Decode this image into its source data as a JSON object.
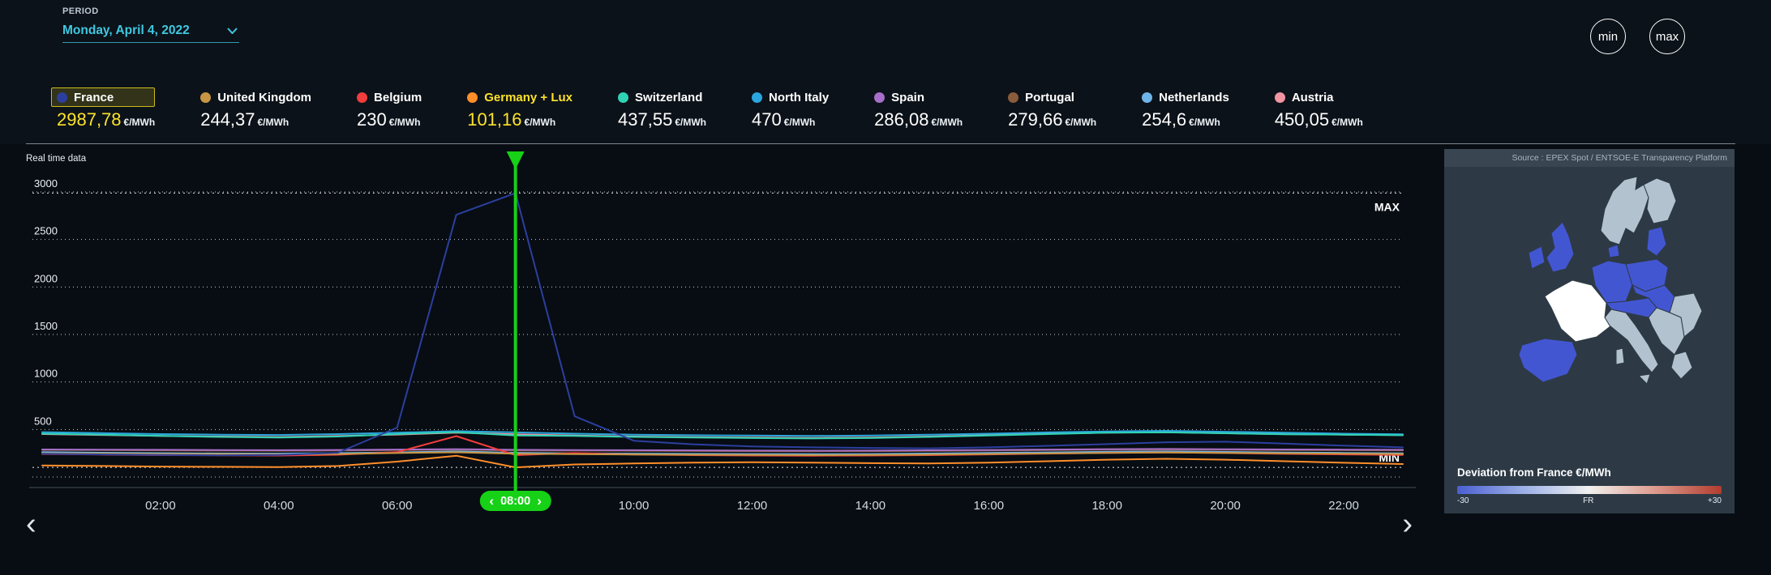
{
  "header": {
    "period_label": "PERIOD",
    "period_value": "Monday, April 4, 2022",
    "min_button": "min",
    "max_button": "max"
  },
  "legend": {
    "unit": "€/MWh",
    "items": [
      {
        "name": "France",
        "value": "2987,78",
        "color": "#2c3f9e",
        "highlight": true,
        "value_color": "#fce32a"
      },
      {
        "name": "United Kingdom",
        "value": "244,37",
        "color": "#c79544"
      },
      {
        "name": "Belgium",
        "value": "230",
        "color": "#f03d3d"
      },
      {
        "name": "Germany + Lux",
        "value": "101,16",
        "color": "#ff8e2a",
        "name_color": "#fce32a",
        "value_color": "#fce32a"
      },
      {
        "name": "Switzerland",
        "value": "437,55",
        "color": "#2fd3b3"
      },
      {
        "name": "North Italy",
        "value": "470",
        "color": "#2ba6de"
      },
      {
        "name": "Spain",
        "value": "286,08",
        "color": "#a76fc9"
      },
      {
        "name": "Portugal",
        "value": "279,66",
        "color": "#8a5c3c"
      },
      {
        "name": "Netherlands",
        "value": "254,6",
        "color": "#6fb4e8"
      },
      {
        "name": "Austria",
        "value": "450,05",
        "color": "#f294a2"
      }
    ]
  },
  "chart": {
    "realtime_label": "Real time data",
    "max_label": "MAX",
    "min_label": "MIN",
    "cursor_time": "08:00",
    "accent_green": "#16d116"
  },
  "chart_data": {
    "type": "line",
    "x_unit": "hour",
    "x": [
      0,
      1,
      2,
      3,
      4,
      5,
      6,
      7,
      8,
      9,
      10,
      11,
      12,
      13,
      14,
      15,
      16,
      17,
      18,
      19,
      20,
      21,
      22,
      23
    ],
    "ylim": [
      0,
      3000
    ],
    "yticks": [
      500,
      1000,
      1500,
      2000,
      2500,
      3000
    ],
    "xticks": [
      {
        "h": 2,
        "label": "02:00"
      },
      {
        "h": 4,
        "label": "04:00"
      },
      {
        "h": 6,
        "label": "06:00"
      },
      {
        "h": 10,
        "label": "10:00"
      },
      {
        "h": 12,
        "label": "12:00"
      },
      {
        "h": 14,
        "label": "14:00"
      },
      {
        "h": 16,
        "label": "16:00"
      },
      {
        "h": 18,
        "label": "18:00"
      },
      {
        "h": 20,
        "label": "20:00"
      },
      {
        "h": 22,
        "label": "22:00"
      }
    ],
    "cursor_hour": 8,
    "max_line_value": 2987.78,
    "min_line_value": 101.16,
    "series": [
      {
        "name": "France",
        "color": "#2c3f9e",
        "values": [
          245,
          238,
          232,
          228,
          232,
          256,
          520,
          2760,
          2987.78,
          640,
          382,
          344,
          322,
          312,
          306,
          302,
          312,
          328,
          346,
          366,
          372,
          352,
          330,
          312
        ]
      },
      {
        "name": "United Kingdom",
        "color": "#c79544",
        "values": [
          250,
          246,
          242,
          240,
          238,
          242,
          252,
          260,
          244.37,
          240,
          236,
          234,
          232,
          230,
          232,
          236,
          242,
          248,
          254,
          258,
          254,
          250,
          246,
          242
        ]
      },
      {
        "name": "Belgium",
        "color": "#f03d3d",
        "values": [
          242,
          236,
          230,
          228,
          226,
          234,
          262,
          430,
          230,
          252,
          236,
          230,
          226,
          224,
          226,
          230,
          238,
          246,
          254,
          258,
          252,
          244,
          238,
          232
        ]
      },
      {
        "name": "Germany + Lux",
        "color": "#ff8e2a",
        "values": [
          122,
          116,
          110,
          107,
          105,
          116,
          162,
          224,
          101.16,
          132,
          142,
          152,
          156,
          152,
          146,
          142,
          152,
          166,
          182,
          192,
          182,
          166,
          150,
          136
        ]
      },
      {
        "name": "Switzerland",
        "color": "#2fd3b3",
        "values": [
          456,
          446,
          432,
          422,
          416,
          426,
          452,
          472,
          437.55,
          432,
          422,
          416,
          410,
          406,
          410,
          422,
          436,
          452,
          466,
          470,
          460,
          450,
          446,
          440
        ]
      },
      {
        "name": "North Italy",
        "color": "#2ba6de",
        "values": [
          472,
          462,
          452,
          446,
          442,
          452,
          466,
          482,
          470,
          456,
          446,
          440,
          436,
          432,
          436,
          446,
          456,
          470,
          480,
          486,
          476,
          466,
          456,
          450
        ]
      },
      {
        "name": "Spain",
        "color": "#a76fc9",
        "values": [
          290,
          288,
          286,
          284,
          282,
          285,
          289,
          293,
          286.08,
          284,
          282,
          280,
          278,
          277,
          278,
          281,
          285,
          289,
          293,
          295,
          292,
          290,
          288,
          286
        ]
      },
      {
        "name": "Portugal",
        "color": "#8a5c3c",
        "values": [
          285,
          283,
          280,
          278,
          276,
          279,
          283,
          287,
          279.66,
          278,
          276,
          274,
          272,
          271,
          272,
          275,
          279,
          283,
          287,
          289,
          286,
          284,
          282,
          280
        ]
      },
      {
        "name": "Netherlands",
        "color": "#6fb4e8",
        "values": [
          262,
          256,
          251,
          248,
          246,
          251,
          259,
          269,
          254.6,
          250,
          246,
          244,
          242,
          240,
          242,
          247,
          253,
          259,
          265,
          269,
          264,
          258,
          254,
          250
        ]
      },
      {
        "name": "Austria",
        "color": "#f294a2",
        "values": [
          452,
          442,
          432,
          426,
          421,
          431,
          447,
          467,
          450.05,
          436,
          426,
          420,
          415,
          411,
          416,
          426,
          441,
          456,
          466,
          471,
          461,
          451,
          446,
          441
        ]
      }
    ]
  },
  "map_panel": {
    "source": "Source : EPEX Spot / ENTSOE-E Transparency Platform",
    "deviation_label": "Deviation from France €/MWh",
    "scale_min": "-30",
    "scale_center": "FR",
    "scale_max": "+30",
    "colors": {
      "no_data": "#b3c2cf",
      "deviation": "#4356d2",
      "reference": "#ffffff",
      "sea": "#2d3a46"
    },
    "scale_gradient": [
      "#4a5fd0",
      "#9cb0e8",
      "#f1f1ef",
      "#dd9a8c",
      "#b23c2e"
    ]
  },
  "icons": {
    "chevron_left": "‹",
    "chevron_right": "›"
  }
}
